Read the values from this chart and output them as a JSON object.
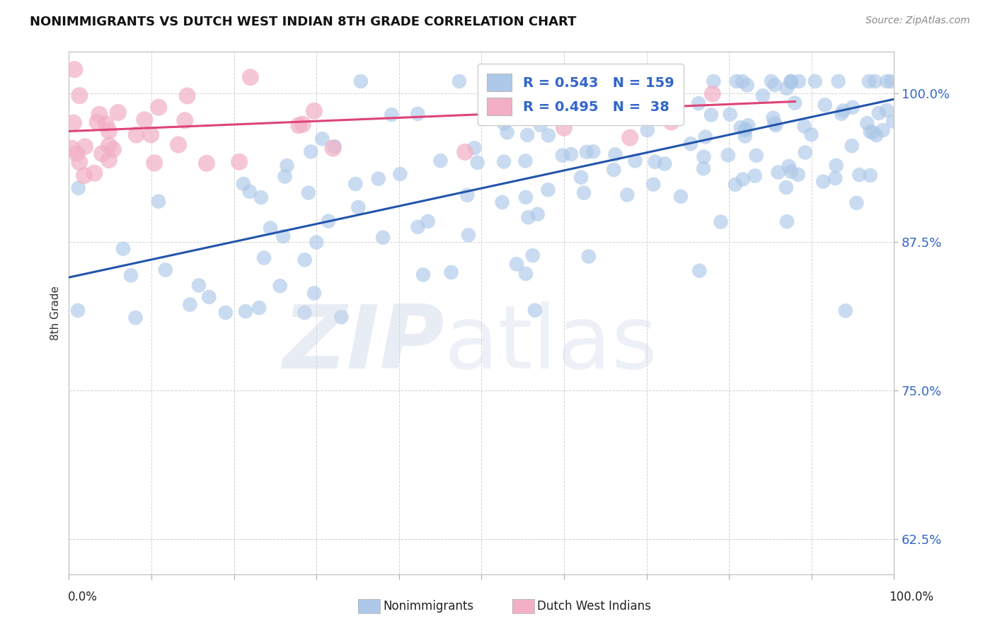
{
  "title": "NONIMMIGRANTS VS DUTCH WEST INDIAN 8TH GRADE CORRELATION CHART",
  "source_text": "Source: ZipAtlas.com",
  "ylabel": "8th Grade",
  "ytick_labels": [
    "62.5%",
    "75.0%",
    "87.5%",
    "100.0%"
  ],
  "ytick_values": [
    0.625,
    0.75,
    0.875,
    1.0
  ],
  "blue_R": 0.543,
  "blue_N": 159,
  "pink_R": 0.495,
  "pink_N": 38,
  "blue_color": "#adc8e8",
  "pink_color": "#f2afc5",
  "blue_line_color": "#2255aa",
  "pink_line_color": "#dd4477",
  "blue_line_x0": 0.0,
  "blue_line_y0": 0.845,
  "blue_line_x1": 1.0,
  "blue_line_y1": 0.995,
  "pink_line_x0": 0.0,
  "pink_line_y0": 0.968,
  "pink_line_x1": 0.88,
  "pink_line_y1": 0.993,
  "xlim": [
    0.0,
    1.0
  ],
  "ylim": [
    0.595,
    1.035
  ],
  "background_color": "#ffffff",
  "grid_color": "#c8c8c8"
}
